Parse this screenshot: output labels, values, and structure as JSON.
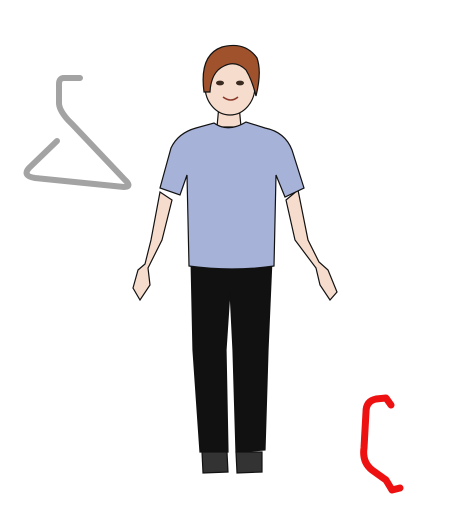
{
  "canvas": {
    "background": "#ffffff"
  },
  "wardrobe": {
    "hanger_tool": {
      "icon": "hanger-icon",
      "color": "#a3a3a3"
    },
    "undo_tool": {
      "icon": "undo-icon",
      "color": "#ee1111"
    }
  },
  "avatar": {
    "icon": "person-avatar",
    "skin_color": "#f6dccd",
    "hair_color": "#a0522d",
    "shirt_color": "#a7b2d9",
    "pants_color": "#111111",
    "shoe_color": "#333333"
  }
}
